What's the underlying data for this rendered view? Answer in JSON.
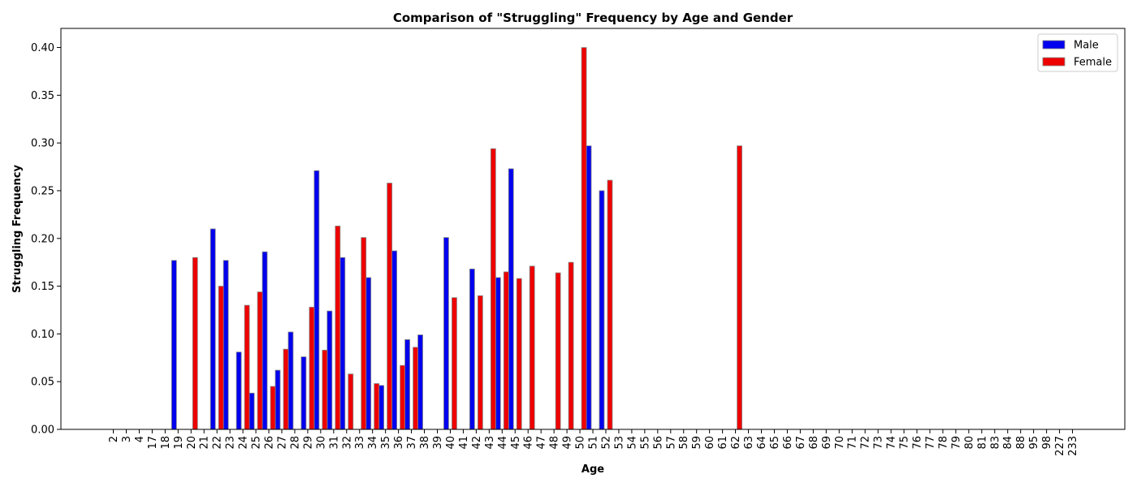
{
  "chart_data": {
    "type": "bar",
    "title": "Comparison of \"Struggling\" Frequency by Age and Gender",
    "xlabel": "Age",
    "ylabel": "Struggling Frequency",
    "ylim": [
      0,
      0.42
    ],
    "yticks": [
      0.0,
      0.05,
      0.1,
      0.15,
      0.2,
      0.25,
      0.3,
      0.35,
      0.4
    ],
    "ytick_labels": [
      "0.00",
      "0.05",
      "0.10",
      "0.15",
      "0.20",
      "0.25",
      "0.30",
      "0.35",
      "0.40"
    ],
    "grid": false,
    "legend_position": "top-right",
    "categories": [
      "2",
      "3",
      "4",
      "17",
      "18",
      "19",
      "20",
      "21",
      "22",
      "23",
      "24",
      "25",
      "26",
      "27",
      "28",
      "29",
      "30",
      "31",
      "32",
      "33",
      "34",
      "35",
      "36",
      "37",
      "38",
      "39",
      "40",
      "41",
      "42",
      "43",
      "44",
      "45",
      "46",
      "47",
      "48",
      "49",
      "50",
      "51",
      "52",
      "53",
      "54",
      "55",
      "56",
      "57",
      "58",
      "59",
      "60",
      "61",
      "62",
      "63",
      "64",
      "65",
      "66",
      "67",
      "68",
      "69",
      "70",
      "71",
      "72",
      "73",
      "74",
      "75",
      "76",
      "77",
      "78",
      "79",
      "80",
      "81",
      "83",
      "84",
      "88",
      "95",
      "98",
      "227",
      "233"
    ],
    "series": [
      {
        "name": "Male",
        "color": "#0000ee",
        "values": [
          0,
          0,
          0,
          0,
          0,
          0.177,
          0,
          0,
          0.21,
          0.177,
          0.081,
          0.038,
          0.186,
          0.062,
          0.102,
          0.076,
          0.271,
          0.124,
          0.18,
          0,
          0.159,
          0.046,
          0.187,
          0.094,
          0.099,
          0,
          0.201,
          0,
          0.168,
          0,
          0.159,
          0.273,
          0,
          0,
          0,
          0,
          0,
          0.297,
          0.25,
          0,
          0,
          0,
          0,
          0,
          0,
          0,
          0,
          0,
          0,
          0,
          0,
          0,
          0,
          0,
          0,
          0,
          0,
          0,
          0,
          0,
          0,
          0,
          0,
          0,
          0,
          0,
          0,
          0,
          0,
          0,
          0,
          0,
          0,
          0,
          0
        ]
      },
      {
        "name": "Female",
        "color": "#ee0000",
        "values": [
          0,
          0,
          0,
          0,
          0,
          0,
          0.18,
          0,
          0.15,
          0,
          0.13,
          0.144,
          0.045,
          0.084,
          0,
          0.128,
          0.083,
          0.213,
          0.058,
          0.201,
          0.048,
          0.258,
          0.067,
          0.086,
          0,
          0,
          0.138,
          0,
          0.14,
          0.294,
          0.165,
          0.158,
          0.171,
          0,
          0.164,
          0.175,
          0.4,
          0,
          0.261,
          0,
          0,
          0,
          0,
          0,
          0,
          0,
          0,
          0,
          0.297,
          0,
          0,
          0,
          0,
          0,
          0,
          0,
          0,
          0,
          0,
          0,
          0,
          0,
          0,
          0,
          0,
          0,
          0,
          0,
          0,
          0,
          0,
          0,
          0,
          0,
          0
        ]
      }
    ]
  }
}
